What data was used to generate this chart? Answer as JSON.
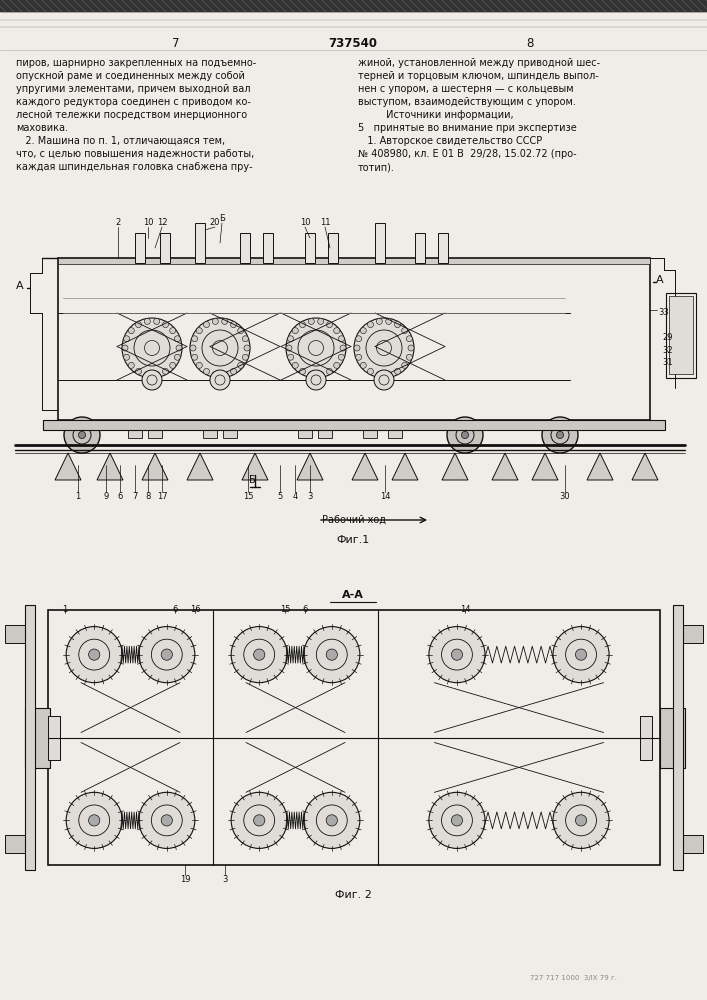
{
  "page_number_left": "7",
  "page_number_center": "737540",
  "page_number_right": "8",
  "bg_color": "#f0ede8",
  "text_color": "#1a1a1a",
  "left_text": [
    "пиров, шарнирно закрепленных на подъемно-",
    "опускной раме и соединенных между собой",
    "упругими элементами, причем выходной вал",
    "каждого редуктора соединен с приводом ко-",
    "лесной тележки посредством инерционного",
    "маховика.",
    "   2. Машина по п. 1, отличающаяся тем,",
    "что, с целью повышения надежности работы,",
    "каждая шпиндельная головка снабжена пру-"
  ],
  "right_text": [
    "жиной, установленной между приводной шес-",
    "терней и торцовым ключом, шпиндель выпол-",
    "нен с упором, а шестерня — с кольцевым",
    "выступом, взаимодействующим с упором.",
    "         Источники информации,",
    "5   принятые во внимание при экспертизе",
    "   1. Авторское свидетельство СССР",
    "№ 408980, кл. Е 01 В  29/28, 15.02.72 (про-",
    "тотип)."
  ],
  "fig1_label": "Фиг.1",
  "fig2_label": "Фиг. 2",
  "arrow_label": "Рабочий ход",
  "section_aa": "А-А",
  "bottom_text": "727 717 1000  3/IX 79 г."
}
